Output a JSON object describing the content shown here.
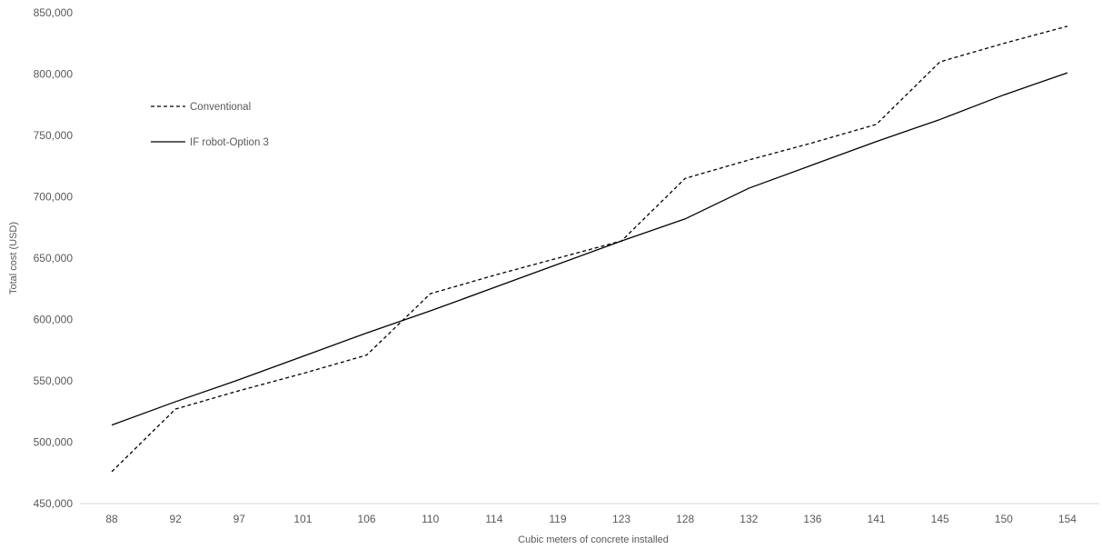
{
  "chart_data": {
    "type": "line",
    "title": "",
    "xlabel": "Cubic meters of concrete installed",
    "ylabel": "Total cost (USD)",
    "categories": [
      "88",
      "92",
      "97",
      "101",
      "106",
      "110",
      "114",
      "119",
      "123",
      "128",
      "132",
      "136",
      "141",
      "145",
      "150",
      "154"
    ],
    "ylim": [
      450000,
      850000
    ],
    "yticks": [
      450000,
      500000,
      550000,
      600000,
      650000,
      700000,
      750000,
      800000,
      850000
    ],
    "ytick_labels": [
      "450,000",
      "500,000",
      "550,000",
      "600,000",
      "650,000",
      "700,000",
      "750,000",
      "800,000",
      "850,000"
    ],
    "grid": false,
    "legend_position": "upper-left",
    "series": [
      {
        "name": "Conventional",
        "style": "dashed",
        "color": "#000000",
        "values": [
          476000,
          527000,
          542000,
          556000,
          571000,
          621000,
          636000,
          650000,
          664000,
          715000,
          730000,
          744000,
          759000,
          810000,
          825000,
          839000
        ]
      },
      {
        "name": "IF robot-Option 3",
        "style": "solid",
        "color": "#000000",
        "values": [
          514000,
          533000,
          551000,
          570000,
          589000,
          607000,
          626000,
          645000,
          664000,
          682000,
          707000,
          726000,
          745000,
          763000,
          783000,
          801000
        ]
      }
    ]
  }
}
